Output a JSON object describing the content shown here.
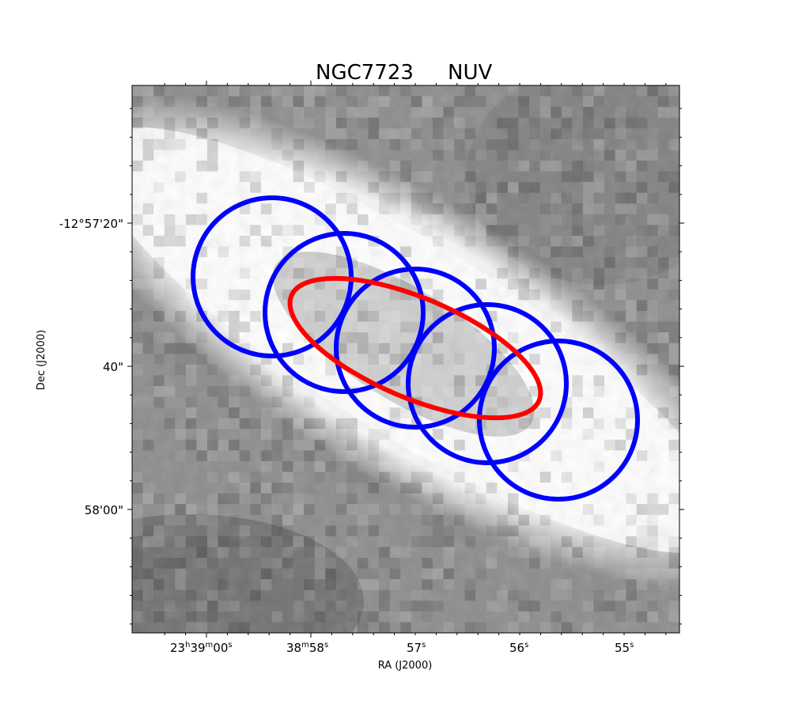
{
  "figure": {
    "title_object": "NGC7723",
    "title_band": "NUV",
    "xlabel": "RA (J2000)",
    "ylabel": "Dec (J2000)"
  },
  "ra_ticks": [
    {
      "h": "23",
      "hs": "h",
      "m": "39",
      "ms": "m",
      "s": "00",
      "ss": "s"
    },
    {
      "m": "38",
      "ms": "m",
      "s": "58",
      "ss": "s"
    },
    {
      "s": "57",
      "ss": "s"
    },
    {
      "s": "56",
      "ss": "s"
    },
    {
      "s": "55",
      "ss": "s"
    }
  ],
  "dec_ticks": [
    "-12°57'20\"",
    "40\"",
    "58'00\""
  ],
  "image": {
    "colormap": "gray",
    "description": "GALEX NUV cutout, bright elongated galaxy band running from upper-left to lower-right"
  },
  "overlays": {
    "circle_color": "#0000ff",
    "ellipse_color": "#ff0000",
    "circle_count": 5
  }
}
